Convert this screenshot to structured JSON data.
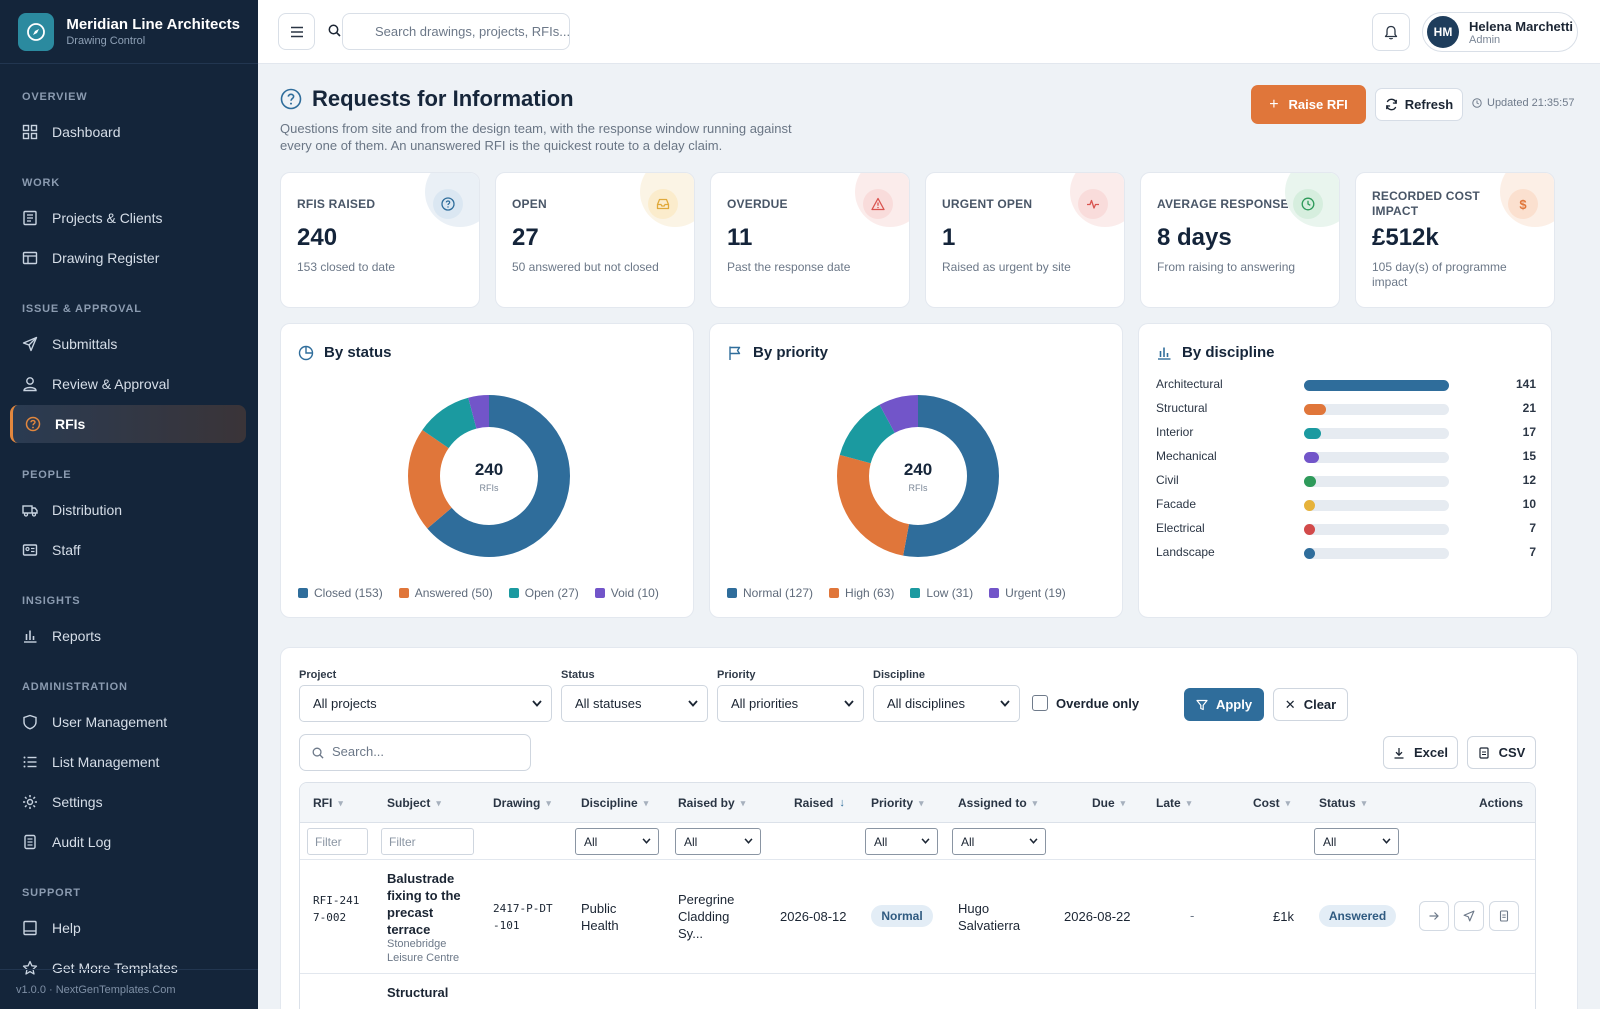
{
  "app": {
    "name": "Meridian Line Architects",
    "subtitle": "Drawing Control"
  },
  "sidebar": {
    "sections": [
      {
        "title": "OVERVIEW",
        "items": [
          {
            "label": "Dashboard",
            "icon": "dashboard-icon"
          }
        ]
      },
      {
        "title": "WORK",
        "items": [
          {
            "label": "Projects & Clients",
            "icon": "projects-icon"
          },
          {
            "label": "Drawing Register",
            "icon": "register-icon"
          }
        ]
      },
      {
        "title": "ISSUE & APPROVAL",
        "items": [
          {
            "label": "Submittals",
            "icon": "send-icon"
          },
          {
            "label": "Review & Approval",
            "icon": "review-icon"
          },
          {
            "label": "RFIs",
            "icon": "question-icon",
            "active": true
          }
        ]
      },
      {
        "title": "PEOPLE",
        "items": [
          {
            "label": "Distribution",
            "icon": "truck-icon"
          },
          {
            "label": "Staff",
            "icon": "id-card-icon"
          }
        ]
      },
      {
        "title": "INSIGHTS",
        "items": [
          {
            "label": "Reports",
            "icon": "bar-chart-icon"
          }
        ]
      },
      {
        "title": "ADMINISTRATION",
        "items": [
          {
            "label": "User Management",
            "icon": "shield-icon"
          },
          {
            "label": "List Management",
            "icon": "list-icon"
          },
          {
            "label": "Settings",
            "icon": "gear-icon"
          },
          {
            "label": "Audit Log",
            "icon": "log-icon"
          }
        ]
      },
      {
        "title": "SUPPORT",
        "items": [
          {
            "label": "Help",
            "icon": "book-icon"
          },
          {
            "label": "Get More Templates",
            "icon": "star-icon"
          }
        ]
      }
    ],
    "footer": "v1.0.0 · NextGenTemplates.Com"
  },
  "topbar": {
    "search_placeholder": "Search drawings, projects, RFIs...",
    "user": {
      "initials": "HM",
      "name": "Helena Marchetti",
      "role": "Admin"
    }
  },
  "page": {
    "title": "Requests for Information",
    "description": "Questions from site and from the design team, with the response window running against every one of them. An unanswered RFI is the quickest route to a delay claim.",
    "raise_label": "Raise RFI",
    "refresh_label": "Refresh",
    "updated": "Updated 21:35:57"
  },
  "kpis": [
    {
      "label": "RFIS RAISED",
      "value": "240",
      "sub": "153 closed to date",
      "icon": "question-icon",
      "color": "#2f6d9b"
    },
    {
      "label": "OPEN",
      "value": "27",
      "sub": "50 answered but not closed",
      "icon": "inbox-icon",
      "color": "#e0a93a"
    },
    {
      "label": "OVERDUE",
      "value": "11",
      "sub": "Past the response date",
      "icon": "warning-icon",
      "color": "#d9534f"
    },
    {
      "label": "URGENT OPEN",
      "value": "1",
      "sub": "Raised as urgent by site",
      "icon": "pulse-icon",
      "color": "#d9534f"
    },
    {
      "label": "AVERAGE RESPONSE",
      "value": "8 days",
      "sub": "From raising to answering",
      "icon": "clock-icon",
      "color": "#2e9a5a"
    },
    {
      "label": "RECORDED COST IMPACT",
      "value": "£512k",
      "sub": "105 day(s) of programme impact",
      "icon": "dollar-icon",
      "color": "#e0763a"
    }
  ],
  "chart_data": [
    {
      "type": "pie",
      "title": "By status",
      "center_value": "240",
      "center_label": "RFIs",
      "categories": [
        "Closed",
        "Answered",
        "Open",
        "Void"
      ],
      "values": [
        153,
        50,
        27,
        10
      ],
      "colors": [
        "#2f6d9b",
        "#e0763a",
        "#1b9aa0",
        "#7255c9"
      ],
      "legend": [
        "Closed (153)",
        "Answered (50)",
        "Open (27)",
        "Void (10)"
      ]
    },
    {
      "type": "pie",
      "title": "By priority",
      "center_value": "240",
      "center_label": "RFIs",
      "categories": [
        "Normal",
        "High",
        "Low",
        "Urgent"
      ],
      "values": [
        127,
        63,
        31,
        19
      ],
      "colors": [
        "#2f6d9b",
        "#e0763a",
        "#1b9aa0",
        "#7255c9"
      ],
      "legend": [
        "Normal (127)",
        "High (63)",
        "Low (31)",
        "Urgent (19)"
      ]
    },
    {
      "type": "bar",
      "title": "By discipline",
      "categories": [
        "Architectural",
        "Structural",
        "Interior",
        "Mechanical",
        "Civil",
        "Facade",
        "Electrical",
        "Landscape"
      ],
      "values": [
        141,
        21,
        17,
        15,
        12,
        10,
        7,
        7
      ],
      "xlim": [
        0,
        141
      ],
      "colors": [
        "#2f6d9b",
        "#e0763a",
        "#1b9aa0",
        "#7255c9",
        "#2e9a5a",
        "#e6b23a",
        "#d24a4a",
        "#2f6d9b"
      ]
    }
  ],
  "filters": {
    "project": {
      "label": "Project",
      "value": "All projects"
    },
    "status": {
      "label": "Status",
      "value": "All statuses"
    },
    "priority": {
      "label": "Priority",
      "value": "All priorities"
    },
    "discipline": {
      "label": "Discipline",
      "value": "All disciplines"
    },
    "overdue_label": "Overdue only",
    "apply_label": "Apply",
    "clear_label": "Clear",
    "search_placeholder": "Search...",
    "excel_label": "Excel",
    "csv_label": "CSV"
  },
  "table": {
    "columns": [
      "RFI",
      "Subject",
      "Drawing",
      "Discipline",
      "Raised by",
      "Raised",
      "Priority",
      "Assigned to",
      "Due",
      "Late",
      "Cost",
      "Status",
      "Actions"
    ],
    "filter_placeholder": "Filter",
    "filter_all": "All",
    "rows": [
      {
        "rfi": "RFI-2417-002",
        "subject": "Balustrade fixing to the precast terrace",
        "project": "Stonebridge Leisure Centre",
        "drawing": "2417-P-DT-101",
        "discipline": "Public Health",
        "raised_by": "Peregrine Cladding Sy...",
        "raised": "2026-08-12",
        "priority": "Normal",
        "assigned": "Hugo Salvatierra",
        "due": "2026-08-22",
        "late": "-",
        "cost": "£1k",
        "status": "Answered"
      },
      {
        "subject": "Structural"
      }
    ]
  }
}
